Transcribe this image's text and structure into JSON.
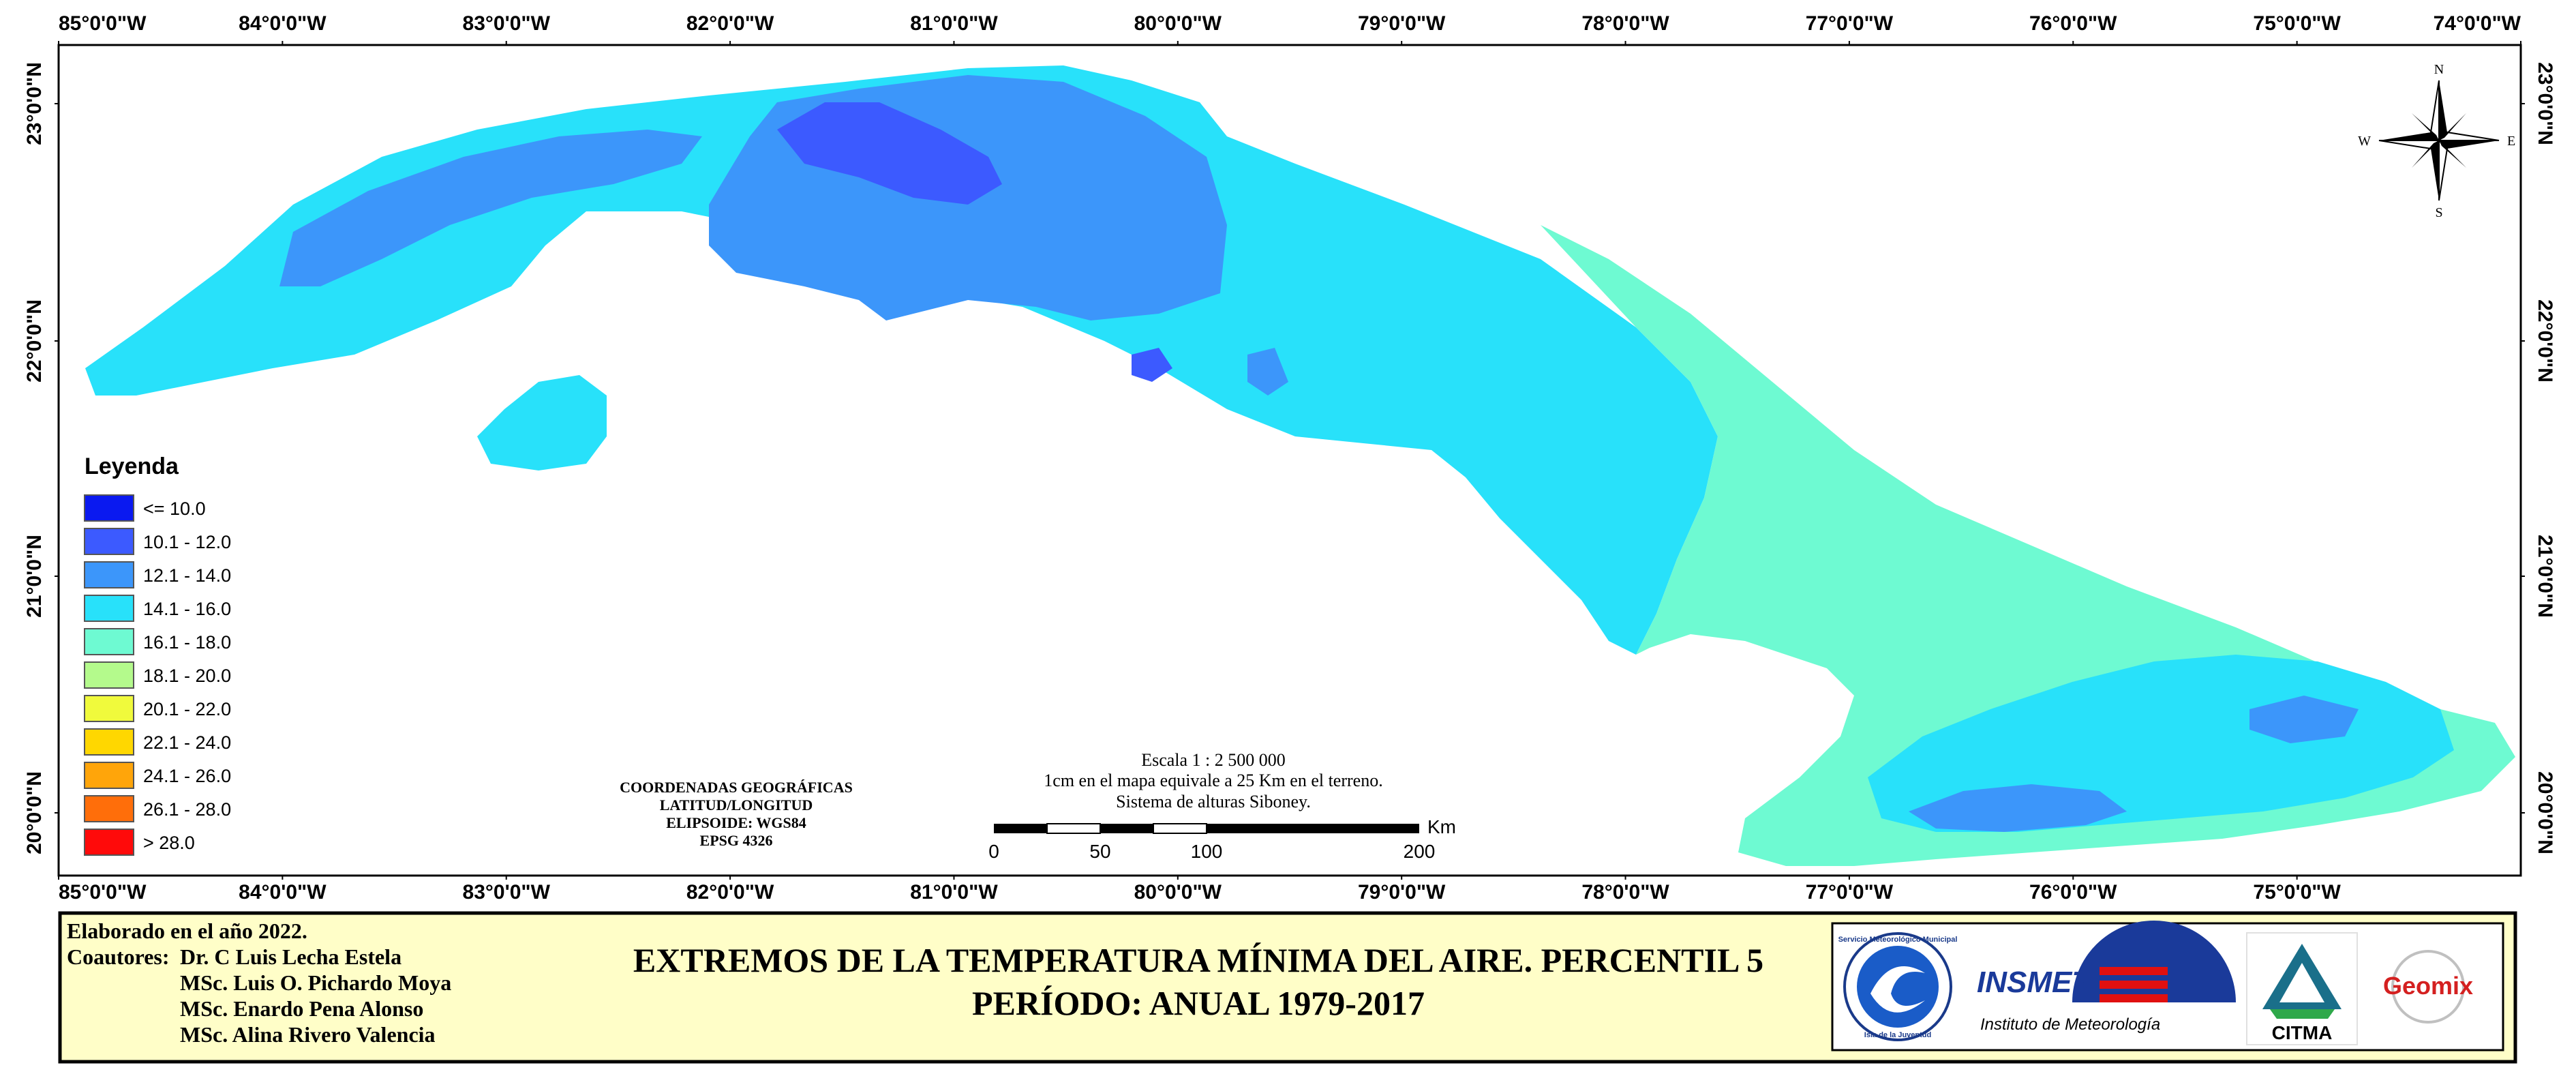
{
  "map": {
    "lon_ticks": [
      "85°0'0\"W",
      "84°0'0\"W",
      "83°0'0\"W",
      "82°0'0\"W",
      "81°0'0\"W",
      "80°0'0\"W",
      "79°0'0\"W",
      "78°0'0\"W",
      "77°0'0\"W",
      "76°0'0\"W",
      "75°0'0\"W",
      "74°0'0\"W"
    ],
    "lon_ticks_bottom": [
      "85°0'0\"W",
      "84°0'0\"W",
      "83°0'0\"W",
      "82°0'0\"W",
      "81°0'0\"W",
      "80°0'0\"W",
      "79°0'0\"W",
      "78°0'0\"W",
      "77°0'0\"W",
      "76°0'0\"W",
      "75°0'0\"W"
    ],
    "lat_ticks": [
      "23°0'0\"N",
      "22°0'0\"N",
      "21°0'0\"N",
      "20°0'0\"N"
    ]
  },
  "legend": {
    "title": "Leyenda",
    "items": [
      {
        "label": "<= 10.0",
        "color": "#0a19f0"
      },
      {
        "label": "10.1 - 12.0",
        "color": "#3c5aff"
      },
      {
        "label": "12.1 - 14.0",
        "color": "#3c96fa"
      },
      {
        "label": "14.1 - 16.0",
        "color": "#28e1fa"
      },
      {
        "label": "16.1 - 18.0",
        "color": "#6efad2"
      },
      {
        "label": "18.1 - 20.0",
        "color": "#b4fa8c"
      },
      {
        "label": "20.1 - 22.0",
        "color": "#f0fa3c"
      },
      {
        "label": "22.1 - 24.0",
        "color": "#ffd700"
      },
      {
        "label": "24.1 - 26.0",
        "color": "#ffa50a"
      },
      {
        "label": "26.1 - 28.0",
        "color": "#ff6e0a"
      },
      {
        "label": "> 28.0",
        "color": "#ff0a0a"
      }
    ]
  },
  "coords": {
    "line1": "COORDENADAS GEOGRÁFICAS",
    "line2": "LATITUD/LONGITUD",
    "line3": "ELIPSOIDE: WGS84",
    "line4": "EPSG 4326"
  },
  "scale": {
    "line1": "Escala 1 : 2 500 000",
    "line2": "1cm en el mapa equivale a 25 Km en el terreno.",
    "line3": "Sistema de alturas Siboney.",
    "unit": "Km",
    "ticks": [
      "0",
      "50",
      "100",
      "200"
    ]
  },
  "compass": {
    "n": "N",
    "s": "S",
    "e": "E",
    "w": "W"
  },
  "footer": {
    "elaborated": "Elaborado en el año 2022.",
    "coauthors_label": "Coautores:",
    "authors": [
      "Dr. C Luis Lecha Estela",
      "MSc. Luis O. Pichardo Moya",
      "MSc. Enardo Pena Alonso",
      "MSc. Alina Rivero Valencia"
    ],
    "title_line1": "EXTREMOS DE LA TEMPERATURA MÍNIMA DEL AIRE. PERCENTIL 5",
    "title_line2": "PERÍODO: ANUAL 1979-2017"
  },
  "logos": {
    "insmet_name": "INSMET",
    "insmet_sub": "Instituto de Meteorología",
    "citma": "CITMA",
    "geomix": "Geomix",
    "smm_top": "Servicio Meteorológico Municipal",
    "smm_bottom": "Isla de la Juventud"
  }
}
